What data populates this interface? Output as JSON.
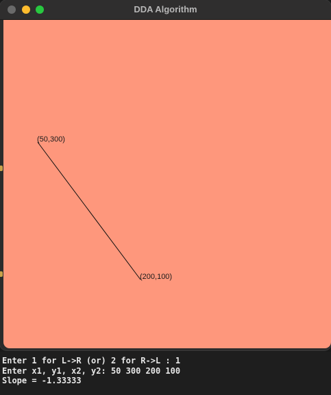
{
  "window": {
    "title": "DDA Algorithm",
    "canvas_color": "#fe977c"
  },
  "drawing": {
    "start_label": "(50,300)",
    "end_label": "(200,100)",
    "line_color": "#111111"
  },
  "terminal": {
    "lines": [
      "Enter 1 for L->R (or) 2 for R->L : 1",
      "Enter x1, y1, x2, y2: 50 300 200 100",
      "Slope = -1.33333"
    ]
  }
}
